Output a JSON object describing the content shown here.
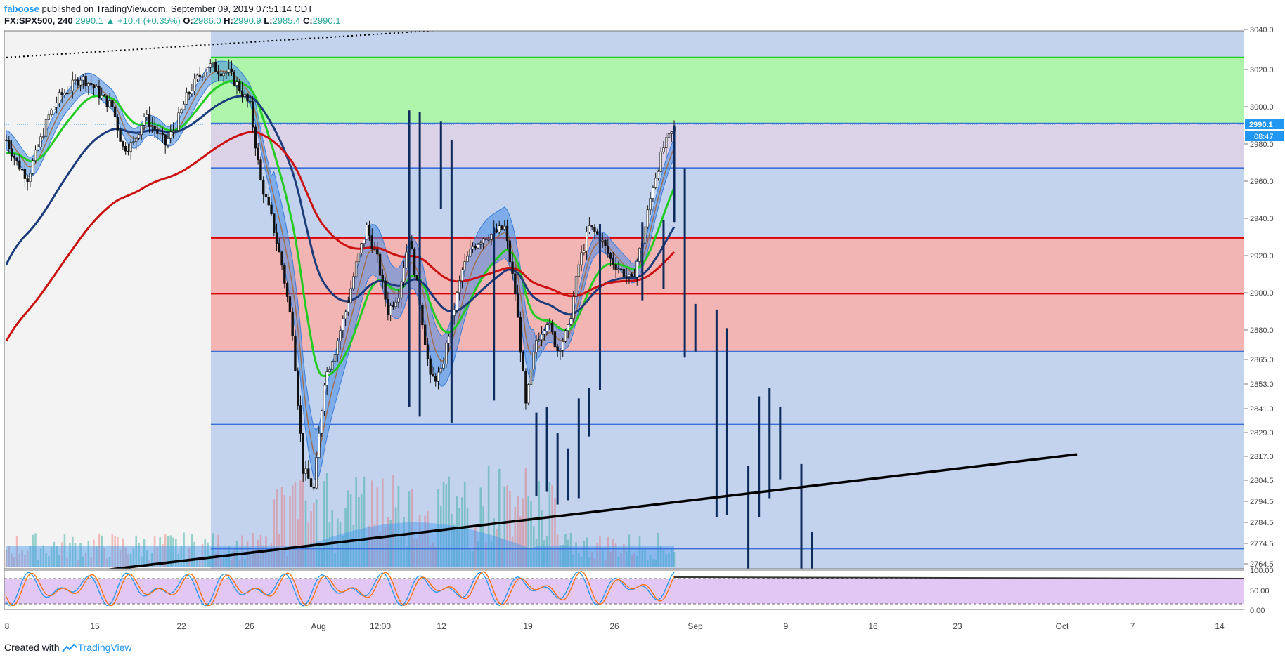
{
  "header": {
    "user": "faboose",
    "published": "published on TradingView.com, September 09, 2019 07:51:14 CDT",
    "symbol": "FX:SPX500, 240",
    "last": "2990.1",
    "change": "+10.4 (+0.35%)",
    "o_label": "O:",
    "o_val": "2986.0",
    "h_label": "H:",
    "h_val": "2990.9",
    "l_label": "L:",
    "l_val": "2985.4",
    "c_label": "C:",
    "c_val": "2990.1"
  },
  "footer": {
    "created": "Created with",
    "brand": "TradingView"
  },
  "colors": {
    "blue_zone": "#c3d3ee",
    "green_zone": "#aef5ab",
    "purple_zone": "#dcd2e8",
    "red_zone": "#f3b4b4",
    "gray_bg": "#f3f3f3",
    "up": "#26a69a",
    "down": "#ef5350",
    "ema_green": "#22cc22",
    "ema_navy": "#1c3b7a",
    "ema_red": "#cc1111",
    "price_label": "#2196f3"
  },
  "chart_data": {
    "type": "candlestick",
    "symbol": "FX:SPX500",
    "interval": "240",
    "y_axis": {
      "range": [
        2760,
        3042
      ],
      "ticks": [
        "3040.0",
        "3020.0",
        "3000.0",
        "2980.0",
        "2960.0",
        "2940.0",
        "2920.0",
        "2900.0",
        "2880.0",
        "2865.0",
        "2853.0",
        "2841.0",
        "2829.0",
        "2817.0",
        "2804.5",
        "2794.5",
        "2784.5",
        "2774.5",
        "2764.5"
      ],
      "last_price_label": "2990.1",
      "countdown_label": "08:47"
    },
    "x_axis": {
      "ticks": [
        "8",
        "15",
        "22",
        "26",
        "Aug",
        "12:00",
        "12",
        "19",
        "26",
        "Sep",
        "9",
        "16",
        "23",
        "Oct",
        "7",
        "14"
      ]
    },
    "horizontal_levels": [
      {
        "price": 3026,
        "color": "#22cc22"
      },
      {
        "price": 2991,
        "color": "#3a6fd8"
      },
      {
        "price": 2967,
        "color": "#3a6fd8"
      },
      {
        "price": 2929.5,
        "color": "#dd0000"
      },
      {
        "price": 2899.5,
        "color": "#dd0000"
      },
      {
        "price": 2869,
        "color": "#3a6fd8"
      },
      {
        "price": 2833,
        "color": "#3a6fd8"
      },
      {
        "price": 2772,
        "color": "#3a6fd8"
      }
    ],
    "zones": [
      {
        "top": 3026,
        "bottom": 2991,
        "color": "green"
      },
      {
        "top": 2991,
        "bottom": 2967,
        "color": "purple"
      },
      {
        "top": 2929.5,
        "bottom": 2869,
        "color": "red"
      }
    ],
    "trendlines": [
      {
        "from": [
          "Jul 15",
          2760
        ],
        "to": [
          "Oct 17",
          2818
        ],
        "color": "#000000",
        "style": "solid"
      },
      {
        "from": [
          "Jul 8",
          3026
        ],
        "to": [
          "Aug 19",
          3040
        ],
        "color": "#000000",
        "style": "dotted"
      }
    ],
    "projection_bars": [
      {
        "date": "Aug 15",
        "high": 2998,
        "low": 2842
      },
      {
        "date": "Aug 16",
        "high": 2997,
        "low": 2837
      },
      {
        "date": "Aug 18",
        "high": 2992,
        "low": 2945
      },
      {
        "date": "Aug 19",
        "high": 2982,
        "low": 2834
      },
      {
        "date": "Aug 23",
        "high": 2935,
        "low": 2845
      },
      {
        "date": "Aug 27",
        "high": 2839,
        "low": 2797
      },
      {
        "date": "Aug 28",
        "high": 2842,
        "low": 2799
      },
      {
        "date": "Aug 29",
        "high": 2829,
        "low": 2793
      },
      {
        "date": "Aug 30",
        "high": 2821,
        "low": 2795
      },
      {
        "date": "Aug 31",
        "high": 2846,
        "low": 2796
      },
      {
        "date": "Sep 1",
        "high": 2851,
        "low": 2827
      },
      {
        "date": "Sep 2",
        "high": 2937,
        "low": 2850
      },
      {
        "date": "Sep 6",
        "high": 2938,
        "low": 2896
      },
      {
        "date": "Sep 8",
        "high": 2939,
        "low": 2902
      },
      {
        "date": "Sep 9",
        "high": 2990,
        "low": 2938
      },
      {
        "date": "Sep 10",
        "high": 2967,
        "low": 2866
      },
      {
        "date": "Sep 11",
        "high": 2894,
        "low": 2869
      },
      {
        "date": "Sep 13",
        "high": 2891,
        "low": 2787
      },
      {
        "date": "Sep 14",
        "high": 2881,
        "low": 2788
      },
      {
        "date": "Sep 16",
        "high": 2812,
        "low": 2760
      },
      {
        "date": "Sep 17",
        "high": 2847,
        "low": 2787
      },
      {
        "date": "Sep 18",
        "high": 2851,
        "low": 2796
      },
      {
        "date": "Sep 19",
        "high": 2842,
        "low": 2805
      },
      {
        "date": "Sep 21",
        "high": 2813,
        "low": 2760
      },
      {
        "date": "Sep 22",
        "high": 2780,
        "low": 2760
      }
    ],
    "indicators": [
      "EMA (green)",
      "EMA (navy)",
      "EMA (red)",
      "Bollinger bands",
      "Volume",
      "Stochastic RSI"
    ],
    "stoch_axis": {
      "ticks": [
        "100.00",
        "50.00",
        "0.00"
      ]
    }
  }
}
